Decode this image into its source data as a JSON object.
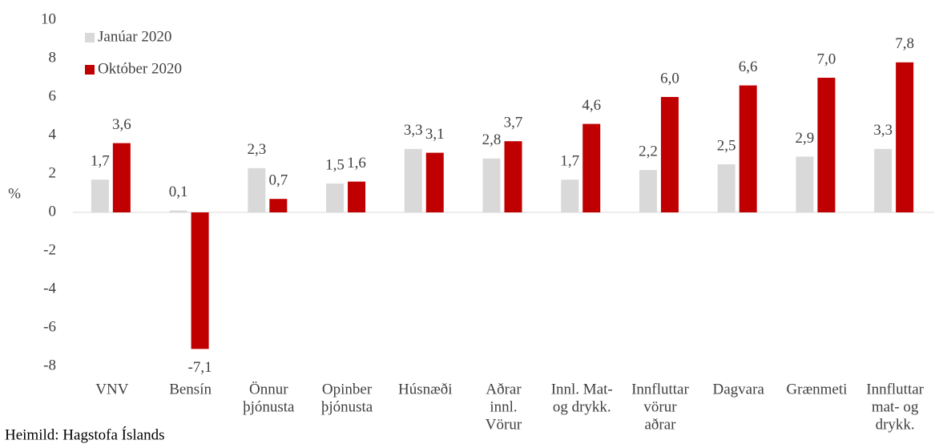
{
  "chart_data": {
    "type": "bar",
    "y_label": "%",
    "source": "Heimild: Hagstofa Íslands",
    "categories": [
      [
        "VNV"
      ],
      [
        "Bensín"
      ],
      [
        "Önnur",
        "þjónusta"
      ],
      [
        "Opinber",
        "þjónusta"
      ],
      [
        "Húsnæði"
      ],
      [
        "Aðrar",
        "innl.",
        "Vörur"
      ],
      [
        "Innl. Mat-",
        "og drykk."
      ],
      [
        "Innfluttar",
        "vörur",
        "aðrar"
      ],
      [
        "Dagvara"
      ],
      [
        "Grænmeti"
      ],
      [
        "Innfluttar",
        "mat- og",
        "drykk."
      ]
    ],
    "series": [
      {
        "name": "Janúar 2020",
        "color": "#d9d9d9",
        "values": [
          1.7,
          0.1,
          2.3,
          1.5,
          3.3,
          2.8,
          1.7,
          2.2,
          2.5,
          2.9,
          3.3
        ],
        "value_labels": [
          "1,7",
          "0,1",
          "2,3",
          "1,5",
          "3,3",
          "2,8",
          "1,7",
          "2,2",
          "2,5",
          "2,9",
          "3,3"
        ]
      },
      {
        "name": "Október 2020",
        "color": "#c00000",
        "values": [
          3.6,
          -7.1,
          0.7,
          1.6,
          3.1,
          3.7,
          4.6,
          6.0,
          6.6,
          7.0,
          7.8
        ],
        "value_labels": [
          "3,6",
          "-7,1",
          "0,7",
          "1,6",
          "3,1",
          "3,7",
          "4,6",
          "6,0",
          "6,6",
          "7,0",
          "7,8"
        ]
      }
    ],
    "ylim": [
      -8,
      10
    ],
    "yticks": [
      -8,
      -6,
      -4,
      -2,
      0,
      2,
      4,
      6,
      8,
      10
    ],
    "grid": false,
    "legend": "top-left"
  }
}
